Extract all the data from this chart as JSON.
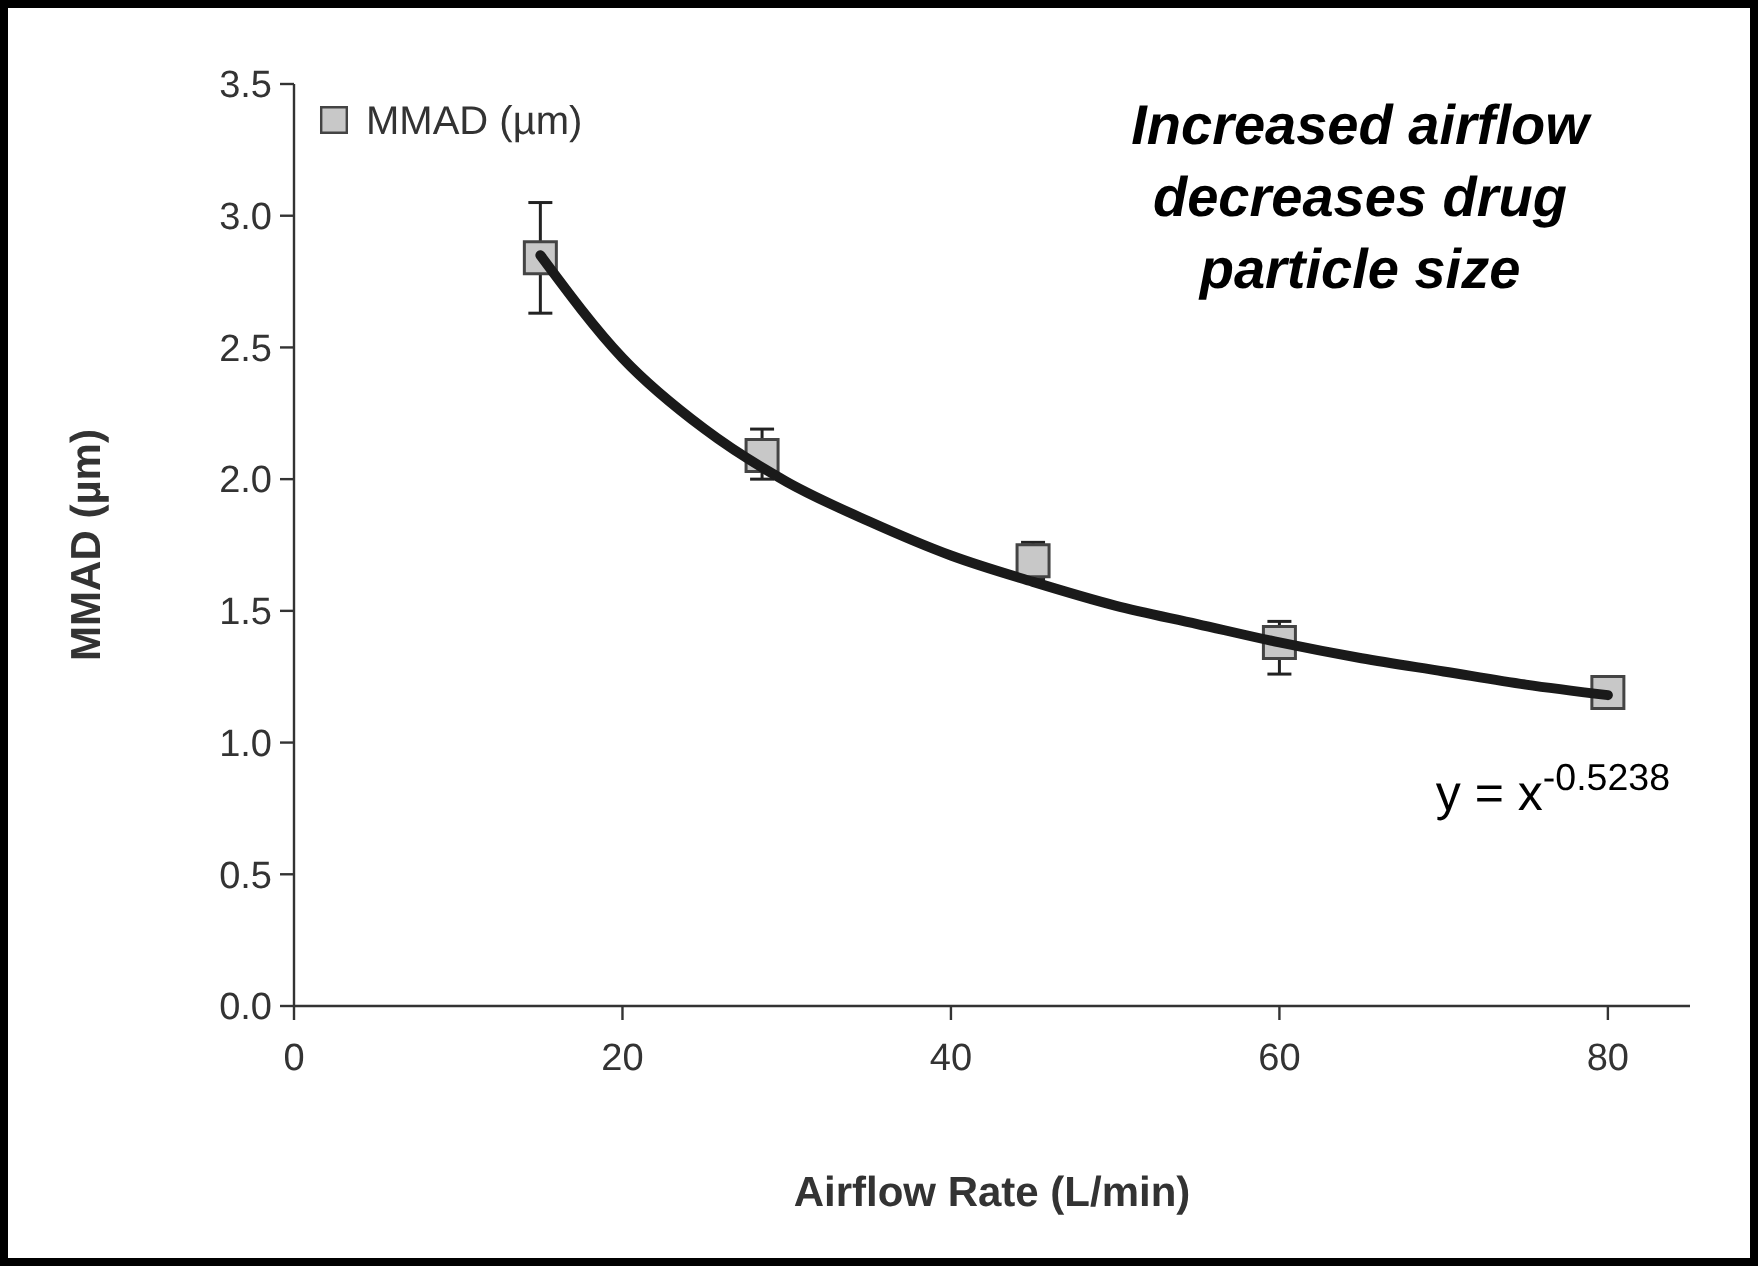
{
  "chart_data": {
    "type": "scatter",
    "xlabel": "Airflow Rate (L/min)",
    "ylabel": "MMAD (µm)",
    "xlim": [
      0,
      85
    ],
    "xticks": [
      0,
      20,
      40,
      60,
      80
    ],
    "ylim": [
      0,
      3.5
    ],
    "yticks": [
      {
        "value": 0,
        "label": "0.0"
      },
      {
        "value": 0.5,
        "label": "0.5"
      },
      {
        "value": 1,
        "label": "1.0"
      },
      {
        "value": 1.5,
        "label": "1.5"
      },
      {
        "value": 2,
        "label": "2.0"
      },
      {
        "value": 2.5,
        "label": "2.5"
      },
      {
        "value": 3,
        "label": "3.0"
      },
      {
        "value": 3.5,
        "label": "3.5"
      }
    ],
    "grid": false,
    "legend": "top left",
    "annotations": [
      "Increased airflow decreases drug particle size",
      "y = x$^{-0.5238}$"
    ],
    "series": [
      {
        "name": "MMAD (µm)",
        "marker": "square",
        "color": "#c8c8c8",
        "x": [
          15,
          28.5,
          45,
          60,
          80
        ],
        "values": [
          2.84,
          2.09,
          1.69,
          1.38,
          1.19
        ],
        "errors": [
          [
            2.63,
            3.05
          ],
          [
            2.0,
            2.19
          ],
          [
            1.62,
            1.76
          ],
          [
            1.26,
            1.46
          ],
          [
            1.14,
            1.23
          ]
        ]
      },
      {
        "type": "line",
        "marker": "none",
        "color": "#1a1a1a",
        "line_style": "solid",
        "x": [
          15,
          20,
          25,
          30,
          35,
          40,
          45,
          50,
          55,
          60,
          65,
          70,
          75,
          80
        ],
        "values": [
          2.85,
          2.46,
          2.19,
          1.99,
          1.84,
          1.71,
          1.61,
          1.52,
          1.45,
          1.38,
          1.32,
          1.27,
          1.22,
          1.18
        ]
      }
    ]
  }
}
